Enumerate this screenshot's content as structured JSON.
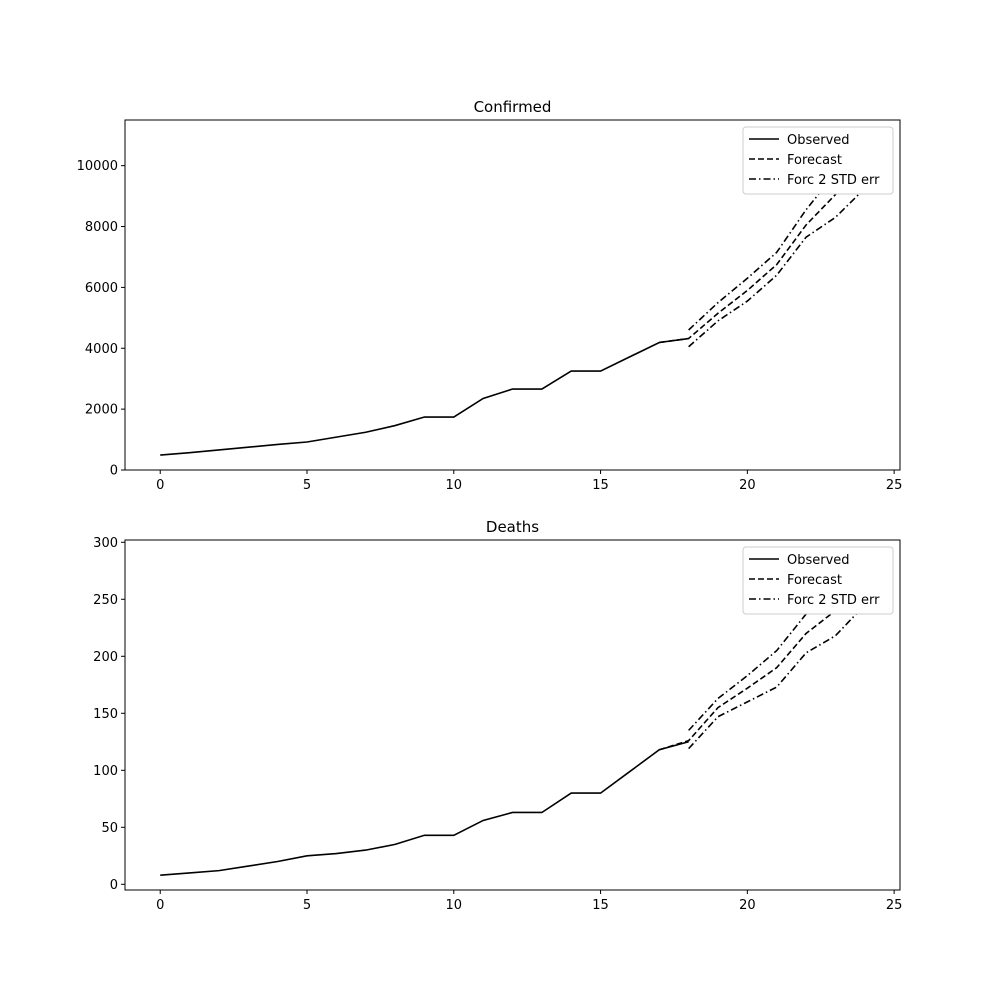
{
  "chart_data": [
    {
      "type": "line",
      "title": "Confirmed",
      "xlabel": "",
      "ylabel": "",
      "xlim": [
        -1.2,
        25.2
      ],
      "ylim": [
        0,
        11500
      ],
      "xticks": [
        0,
        5,
        10,
        15,
        20,
        25
      ],
      "yticks": [
        0,
        2000,
        4000,
        6000,
        8000,
        10000
      ],
      "legend_position": "upper right",
      "legend": [
        "Observed",
        "Forecast",
        "Forc 2 STD err"
      ],
      "series": [
        {
          "name": "Observed",
          "style": "solid",
          "x": [
            0,
            1,
            2,
            3,
            4,
            5,
            6,
            7,
            8,
            9,
            10,
            11,
            12,
            13,
            14,
            15,
            16,
            17,
            18
          ],
          "y": [
            490,
            570,
            660,
            750,
            840,
            920,
            1080,
            1240,
            1460,
            1740,
            1740,
            2350,
            2660,
            2660,
            3250,
            3250,
            3720,
            4190,
            4320
          ]
        },
        {
          "name": "Forecast",
          "style": "dashed",
          "x": [
            17,
            18,
            19,
            20,
            21,
            22,
            23,
            24
          ],
          "y": [
            4190,
            4320,
            5150,
            5900,
            6750,
            8050,
            9050,
            10150
          ]
        },
        {
          "name": "Forc 2 STD err",
          "style": "dashdot",
          "x": [
            18,
            19,
            20,
            21,
            22,
            23,
            24
          ],
          "y": [
            4600,
            5500,
            6300,
            7150,
            8550,
            9750,
            10950
          ]
        },
        {
          "name": "Forc 2 STD err",
          "style": "dashdot",
          "x": [
            18,
            19,
            20,
            21,
            22,
            23,
            24
          ],
          "y": [
            4050,
            4900,
            5550,
            6400,
            7650,
            8300,
            9250
          ]
        }
      ]
    },
    {
      "type": "line",
      "title": "Deaths",
      "xlabel": "",
      "ylabel": "",
      "xlim": [
        -1.2,
        25.2
      ],
      "ylim": [
        -5,
        302
      ],
      "xticks": [
        0,
        5,
        10,
        15,
        20,
        25
      ],
      "yticks": [
        0,
        50,
        100,
        150,
        200,
        250,
        300
      ],
      "legend_position": "upper right",
      "legend": [
        "Observed",
        "Forecast",
        "Forc 2 STD err"
      ],
      "series": [
        {
          "name": "Observed",
          "style": "solid",
          "x": [
            0,
            1,
            2,
            3,
            4,
            5,
            6,
            7,
            8,
            9,
            10,
            11,
            12,
            13,
            14,
            15,
            16,
            17,
            18
          ],
          "y": [
            8,
            10,
            12,
            16,
            20,
            25,
            27,
            30,
            35,
            43,
            43,
            56,
            63,
            63,
            80,
            80,
            99,
            118,
            125
          ]
        },
        {
          "name": "Forecast",
          "style": "dashed",
          "x": [
            17,
            18,
            19,
            20,
            21,
            22,
            23,
            24
          ],
          "y": [
            118,
            126,
            155,
            172,
            190,
            220,
            240,
            267
          ]
        },
        {
          "name": "Forc 2 STD err",
          "style": "dashdot",
          "x": [
            18,
            19,
            20,
            21,
            22,
            23,
            24
          ],
          "y": [
            135,
            163,
            183,
            205,
            237,
            262,
            290
          ]
        },
        {
          "name": "Forc 2 STD err",
          "style": "dashdot",
          "x": [
            18,
            19,
            20,
            21,
            22,
            23,
            24
          ],
          "y": [
            119,
            147,
            160,
            173,
            203,
            218,
            245
          ]
        }
      ]
    }
  ]
}
